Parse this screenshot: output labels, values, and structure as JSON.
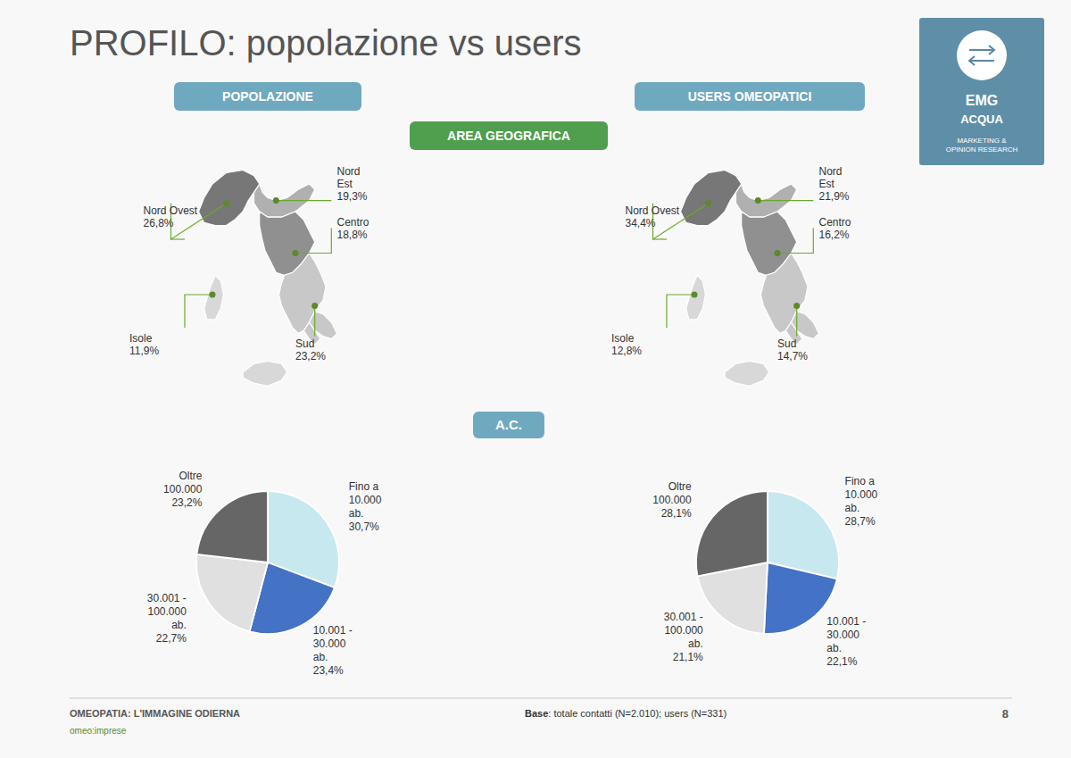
{
  "title": "PROFILO: popolazione vs users",
  "annotations": [
    "AREA GEOGRAFICA",
    "A.C.",
    "EMG",
    "ACQUA",
    "MARKETING &\nOPINION RESEARCH",
    "OMEOPATIA: L'IMMAGINE ODIERNA",
    "omeo:imprese",
    "Base",
    ": totale contatti (N=2.010); users (N=331)",
    "8"
  ],
  "chart_data": [
    {
      "type": "map",
      "title": "POPOLAZIONE",
      "categories": [
        "Nord\nEst",
        "Centro",
        "Nord Ovest",
        "Sud",
        "Isole"
      ],
      "values": [
        19.3,
        18.8,
        26.8,
        23.2,
        11.9
      ],
      "value_labels": [
        "19,3%",
        "18,8%",
        "26,8%",
        "23,2%",
        "11,9%"
      ],
      "colors": [
        "#b0b0b0",
        "#909090",
        "#777777",
        "#c8c8c8",
        "#d8d8d8"
      ],
      "data_labels": true
    },
    {
      "type": "map",
      "title": "USERS OMEOPATICI",
      "categories": [
        "Nord\nEst",
        "Centro",
        "Nord Ovest",
        "Sud",
        "Isole"
      ],
      "values": [
        21.9,
        16.2,
        34.4,
        14.7,
        12.8
      ],
      "value_labels": [
        "21,9%",
        "16,2%",
        "34,4%",
        "14,7%",
        "12,8%"
      ],
      "colors": [
        "#b0b0b0",
        "#909090",
        "#777777",
        "#c8c8c8",
        "#d8d8d8"
      ],
      "data_labels": true
    },
    {
      "type": "pie",
      "categories": [
        "Fino a\n10.000\nab.",
        "10.001 -\n30.000\nab.",
        "30.001 -\n100.000\nab.",
        "Oltre\n100.000"
      ],
      "values": [
        30.7,
        23.4,
        22.7,
        23.2
      ],
      "value_labels": [
        "30,7%",
        "23,4%",
        "22,7%",
        "23,2%"
      ],
      "colors": [
        "#c8e8f0",
        "#4472c4",
        "#e0e0e0",
        "#666666"
      ],
      "data_labels": true
    },
    {
      "type": "pie",
      "categories": [
        "Fino a\n10.000\nab.",
        "10.001 -\n30.000\nab.",
        "30.001 -\n100.000\nab.",
        "Oltre\n100.000"
      ],
      "values": [
        28.7,
        22.1,
        21.1,
        28.1
      ],
      "value_labels": [
        "28,7%",
        "22,1%",
        "21,1%",
        "28,1%"
      ],
      "colors": [
        "#c8e8f0",
        "#4472c4",
        "#e0e0e0",
        "#666666"
      ],
      "data_labels": true
    }
  ]
}
